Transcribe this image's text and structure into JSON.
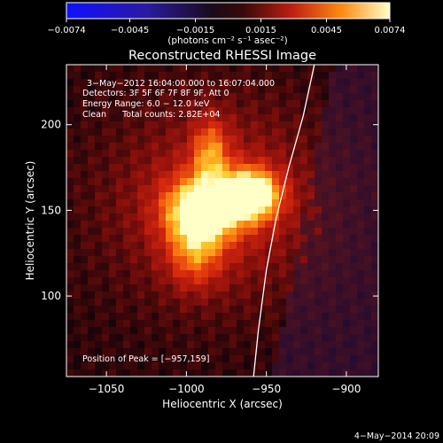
{
  "colorbar": {
    "ticks": [
      "−0.0074",
      "−0.0045",
      "−0.0015",
      "0.0015",
      "0.0045",
      "0.0074"
    ],
    "unit_label": "(photons cm⁻² s⁻¹ asec⁻²)",
    "range": [
      -0.0074,
      0.0074
    ]
  },
  "plot": {
    "title": "Reconstructed RHESSI Image",
    "info_lines": [
      "3−May−2012 16:04:00.000 to 16:07:04.000",
      "Detectors: 3F 5F 6F 7F 8F 9F, Att 0",
      "Energy Range: 6.0 − 12.0 keV",
      "Clean      Total counts: 2.82E+04"
    ],
    "peak_text": "Position of Peak = [−957,159]"
  },
  "footer": {
    "date": "4−May−2014 20:09"
  },
  "chart_data": {
    "type": "heatmap",
    "title": "Reconstructed RHESSI Image",
    "xlabel": "Heliocentric X (arcsec)",
    "ylabel": "Heliocentric Y (arcsec)",
    "xlim": [
      -1075,
      -880
    ],
    "ylim": [
      53,
      235
    ],
    "x_ticks": [
      -1050,
      -1000,
      -950,
      -900
    ],
    "y_ticks": [
      100,
      150,
      200
    ],
    "x_tick_labels": [
      "−1050",
      "−1000",
      "−950",
      "−900"
    ],
    "y_tick_labels": [
      "100",
      "150",
      "200"
    ],
    "peak": [
      -957,
      159
    ],
    "sources": [
      {
        "x": -990,
        "y": 150,
        "sx": 16,
        "sy": 13,
        "amp": 0.0066
      },
      {
        "x": -959,
        "y": 159,
        "sx": 12,
        "sy": 10,
        "amp": 0.0074
      },
      {
        "x": -985,
        "y": 184,
        "sx": 8,
        "sy": 14,
        "amp": 0.0034
      },
      {
        "x": -995,
        "y": 124,
        "sx": 12,
        "sy": 14,
        "amp": 0.003
      },
      {
        "x": -980,
        "y": 155,
        "sx": 48,
        "sy": 40,
        "amp": 0.0026
      }
    ],
    "limb": [
      [
        -920,
        235
      ],
      [
        -927,
        205
      ],
      [
        -936,
        175
      ],
      [
        -944,
        145
      ],
      [
        -950,
        115
      ],
      [
        -955,
        80
      ],
      [
        -958,
        53
      ]
    ],
    "grid": false
  }
}
